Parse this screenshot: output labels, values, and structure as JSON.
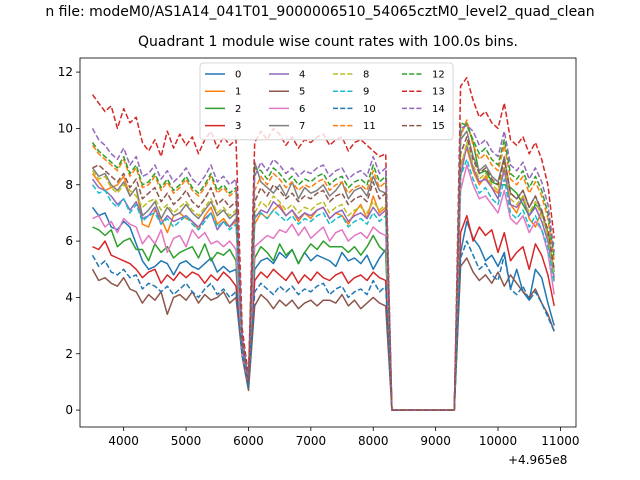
{
  "suptitle": "n file: modeM0/AS1A14_041T01_9000006510_54065cztM0_level2_quad_clean",
  "title": "Quadrant 1 module wise count rates with 100.0s bins.",
  "x_offset_label": "+4.965e8",
  "chart_data": {
    "type": "line",
    "title": "Quadrant 1 module wise count rates with 100.0s bins.",
    "xlim": [
      3300,
      11250
    ],
    "ylim": [
      -0.6,
      12.5
    ],
    "xticks": [
      4000,
      5000,
      6000,
      7000,
      8000,
      9000,
      10000,
      11000
    ],
    "yticks": [
      0,
      2,
      4,
      6,
      8,
      10,
      12
    ],
    "x_offset": "+4.965e8",
    "legend": {
      "position": "top-center",
      "columns": 4
    },
    "x": [
      3500,
      3600,
      3700,
      3800,
      3900,
      4000,
      4100,
      4200,
      4300,
      4400,
      4500,
      4600,
      4700,
      4800,
      4900,
      5000,
      5100,
      5200,
      5300,
      5400,
      5500,
      5600,
      5700,
      5800,
      5900,
      6000,
      6100,
      6200,
      6300,
      6400,
      6500,
      6600,
      6700,
      6800,
      6900,
      7000,
      7100,
      7200,
      7300,
      7400,
      7500,
      7600,
      7700,
      7800,
      7900,
      8000,
      8100,
      8200,
      8300,
      9300,
      9400,
      9500,
      9600,
      9700,
      9800,
      9900,
      10000,
      10100,
      10200,
      10300,
      10400,
      10500,
      10600,
      10700,
      10800,
      10900
    ],
    "series": [
      {
        "name": "0",
        "color": "#1f77b4",
        "dash": "solid",
        "values": [
          7.2,
          6.9,
          7.0,
          6.5,
          6.4,
          6.7,
          6.5,
          5.9,
          5.3,
          5.0,
          5.1,
          5.3,
          5.2,
          4.8,
          5.2,
          5.3,
          5.1,
          5.0,
          5.2,
          5.4,
          4.9,
          5.1,
          4.9,
          5.0,
          2.2,
          0.9,
          5.0,
          5.3,
          5.4,
          5.2,
          5.6,
          5.4,
          5.7,
          5.2,
          5.6,
          5.3,
          5.5,
          5.4,
          5.3,
          5.1,
          5.6,
          5.3,
          5.4,
          5.2,
          5.5,
          5.0,
          5.4,
          5.7,
          0,
          0,
          5.6,
          6.7,
          6.1,
          5.8,
          5.3,
          5.5,
          5.1,
          5.6,
          4.3,
          5.0,
          4.2,
          3.9,
          5.0,
          4.7,
          3.8,
          3.0
        ]
      },
      {
        "name": "1",
        "color": "#ff7f0e",
        "dash": "solid",
        "values": [
          8.4,
          8.1,
          7.8,
          7.9,
          8.0,
          8.3,
          7.6,
          7.9,
          6.6,
          6.5,
          7.1,
          6.8,
          6.3,
          6.9,
          7.0,
          6.8,
          6.7,
          6.4,
          6.9,
          7.2,
          6.6,
          6.8,
          6.5,
          6.7,
          2.4,
          1.0,
          6.6,
          7.0,
          6.8,
          7.1,
          7.3,
          6.9,
          7.1,
          6.7,
          7.0,
          6.8,
          7.1,
          7.2,
          6.8,
          7.0,
          6.9,
          6.6,
          7.0,
          7.3,
          6.8,
          7.6,
          7.0,
          7.2,
          0,
          0,
          8.7,
          9.3,
          8.5,
          8.0,
          8.3,
          7.9,
          7.7,
          8.5,
          7.3,
          7.0,
          7.6,
          6.8,
          6.5,
          7.1,
          6.2,
          4.6
        ]
      },
      {
        "name": "2",
        "color": "#2ca02c",
        "dash": "solid",
        "values": [
          6.5,
          6.4,
          6.2,
          6.4,
          5.8,
          6.0,
          6.1,
          5.7,
          5.7,
          5.3,
          5.9,
          5.6,
          5.8,
          5.4,
          5.6,
          5.7,
          5.8,
          5.4,
          5.9,
          5.3,
          5.6,
          5.5,
          5.7,
          5.3,
          2.1,
          0.8,
          5.4,
          5.8,
          5.6,
          5.3,
          5.9,
          5.5,
          5.7,
          5.2,
          5.6,
          5.9,
          5.7,
          6.0,
          5.8,
          5.8,
          5.8,
          5.6,
          5.8,
          5.5,
          5.8,
          6.2,
          5.8,
          5.6,
          0,
          0,
          9.8,
          10.2,
          9.5,
          8.4,
          8.5,
          8.1,
          8.0,
          8.0,
          7.9,
          7.7,
          7.3,
          6.9,
          7.3,
          7.1,
          6.2,
          5.9
        ]
      },
      {
        "name": "3",
        "color": "#d62728",
        "dash": "solid",
        "values": [
          5.8,
          5.7,
          6.0,
          5.5,
          5.4,
          5.3,
          5.2,
          5.0,
          4.7,
          4.9,
          5.0,
          4.5,
          4.8,
          4.6,
          4.9,
          4.7,
          4.9,
          4.8,
          4.5,
          4.8,
          4.6,
          4.9,
          4.7,
          4.4,
          2.0,
          0.9,
          4.6,
          4.9,
          4.7,
          5.0,
          4.8,
          4.6,
          4.9,
          4.5,
          4.8,
          4.6,
          4.9,
          4.7,
          4.6,
          4.8,
          4.9,
          4.5,
          4.7,
          4.8,
          4.6,
          4.9,
          4.7,
          4.6,
          0,
          0,
          6.3,
          6.9,
          6.0,
          6.5,
          6.2,
          6.4,
          5.6,
          6.3,
          5.3,
          5.6,
          5.8,
          5.0,
          5.9,
          5.5,
          4.8,
          3.7
        ]
      },
      {
        "name": "4",
        "color": "#9467bd",
        "dash": "solid",
        "values": [
          8.2,
          7.9,
          7.8,
          7.6,
          7.3,
          7.5,
          7.1,
          7.4,
          6.8,
          6.9,
          7.2,
          6.6,
          6.9,
          6.7,
          6.8,
          6.9,
          6.7,
          6.5,
          6.8,
          7.0,
          6.4,
          6.7,
          6.5,
          6.8,
          2.2,
          1.0,
          6.8,
          7.1,
          7.0,
          7.4,
          7.2,
          6.9,
          7.1,
          6.8,
          7.0,
          6.9,
          7.1,
          7.2,
          6.8,
          7.0,
          7.1,
          6.7,
          6.9,
          7.0,
          6.8,
          7.2,
          6.9,
          7.1,
          0,
          0,
          8.3,
          9.4,
          8.6,
          8.1,
          8.2,
          7.9,
          7.5,
          8.6,
          7.3,
          7.2,
          7.5,
          6.9,
          7.2,
          6.7,
          6.0,
          4.7
        ]
      },
      {
        "name": "5",
        "color": "#8c564b",
        "dash": "solid",
        "values": [
          5.0,
          4.6,
          4.7,
          4.5,
          4.4,
          4.7,
          4.3,
          4.2,
          3.8,
          4.1,
          3.9,
          4.2,
          3.4,
          4.0,
          4.1,
          3.9,
          4.2,
          3.8,
          4.1,
          3.9,
          4.0,
          4.2,
          3.8,
          4.0,
          1.9,
          0.7,
          3.7,
          4.1,
          3.9,
          3.6,
          3.9,
          3.7,
          3.9,
          3.6,
          3.8,
          3.9,
          3.7,
          3.9,
          3.9,
          3.8,
          4.1,
          3.7,
          3.9,
          3.6,
          3.8,
          4.0,
          3.8,
          3.7,
          0,
          0,
          5.1,
          5.4,
          4.9,
          4.6,
          4.8,
          4.5,
          4.9,
          4.4,
          4.8,
          4.5,
          4.2,
          4.0,
          4.3,
          3.8,
          3.4,
          2.8
        ]
      },
      {
        "name": "6",
        "color": "#e377c2",
        "dash": "solid",
        "values": [
          6.8,
          6.9,
          6.5,
          6.7,
          6.3,
          6.8,
          6.6,
          6.5,
          5.9,
          6.2,
          5.9,
          6.4,
          5.6,
          6.1,
          6.2,
          5.8,
          6.4,
          6.1,
          6.3,
          5.9,
          6.0,
          5.8,
          6.0,
          5.7,
          2.0,
          0.9,
          5.8,
          6.0,
          6.2,
          6.1,
          6.4,
          6.3,
          6.6,
          6.2,
          6.5,
          6.1,
          6.3,
          6.5,
          6.0,
          6.3,
          6.4,
          6.0,
          6.2,
          6.3,
          6.1,
          6.5,
          6.3,
          6.2,
          0,
          0,
          7.8,
          8.7,
          8.0,
          7.5,
          7.6,
          7.3,
          7.0,
          7.8,
          6.8,
          6.6,
          6.9,
          6.3,
          6.7,
          6.4,
          5.6,
          4.1
        ]
      },
      {
        "name": "7",
        "color": "#7f7f7f",
        "dash": "solid",
        "values": [
          8.6,
          8.3,
          8.4,
          8.0,
          7.8,
          8.1,
          7.6,
          7.9,
          6.9,
          7.1,
          7.4,
          6.8,
          7.2,
          6.9,
          7.0,
          7.3,
          7.0,
          6.8,
          7.1,
          7.4,
          6.9,
          7.1,
          6.8,
          7.0,
          2.3,
          1.0,
          8.8,
          8.1,
          7.9,
          7.7,
          8.0,
          7.6,
          8.1,
          7.5,
          7.9,
          7.7,
          7.8,
          8.0,
          7.6,
          7.8,
          8.1,
          7.5,
          7.8,
          7.9,
          7.6,
          8.3,
          7.8,
          7.7,
          0,
          0,
          9.6,
          9.9,
          9.0,
          8.5,
          8.7,
          8.3,
          8.1,
          9.0,
          7.7,
          7.5,
          7.8,
          7.2,
          7.6,
          7.0,
          6.3,
          4.9
        ]
      },
      {
        "name": "8",
        "color": "#bcbd22",
        "dash": "dashed",
        "values": [
          8.5,
          8.2,
          8.3,
          7.9,
          7.7,
          8.0,
          7.8,
          7.6,
          7.2,
          7.4,
          7.5,
          7.1,
          7.3,
          7.0,
          7.2,
          7.4,
          7.1,
          6.9,
          7.2,
          7.5,
          7.0,
          7.2,
          6.9,
          7.1,
          2.4,
          1.1,
          7.0,
          7.4,
          7.2,
          7.6,
          7.4,
          7.1,
          7.3,
          7.0,
          7.2,
          7.1,
          7.3,
          7.4,
          7.0,
          7.2,
          7.3,
          6.9,
          7.1,
          7.2,
          7.0,
          7.4,
          7.1,
          7.3,
          0,
          0,
          8.6,
          9.5,
          8.7,
          8.2,
          8.4,
          8.0,
          7.8,
          8.8,
          7.5,
          7.3,
          7.6,
          7.0,
          7.4,
          6.9,
          6.2,
          4.8
        ]
      },
      {
        "name": "9",
        "color": "#17becf",
        "dash": "dashed",
        "values": [
          8.0,
          7.7,
          7.8,
          7.4,
          7.2,
          7.5,
          7.0,
          7.3,
          6.7,
          6.9,
          7.0,
          6.6,
          6.8,
          6.5,
          6.7,
          6.9,
          6.6,
          6.4,
          6.7,
          7.0,
          6.5,
          6.7,
          6.4,
          6.6,
          2.2,
          1.0,
          6.9,
          7.0,
          6.8,
          7.1,
          6.9,
          6.7,
          6.9,
          6.6,
          6.8,
          6.7,
          6.9,
          7.0,
          6.6,
          6.8,
          6.9,
          6.5,
          6.7,
          6.8,
          6.6,
          7.0,
          6.7,
          6.9,
          0,
          0,
          8.3,
          8.9,
          8.2,
          7.7,
          7.9,
          7.5,
          7.3,
          8.2,
          7.0,
          6.8,
          7.1,
          6.5,
          6.9,
          6.4,
          5.8,
          4.5
        ]
      },
      {
        "name": "10",
        "color": "#1f77b4",
        "dash": "dashed",
        "values": [
          5.5,
          5.1,
          5.3,
          4.9,
          4.8,
          5.0,
          4.7,
          4.8,
          4.3,
          4.5,
          4.4,
          4.2,
          4.4,
          4.1,
          4.3,
          4.5,
          4.2,
          4.0,
          4.3,
          4.5,
          4.1,
          4.3,
          4.0,
          4.2,
          2.0,
          0.8,
          4.2,
          4.5,
          4.3,
          4.1,
          4.4,
          4.2,
          4.4,
          4.1,
          4.3,
          4.2,
          4.4,
          4.5,
          4.1,
          4.3,
          4.4,
          4.0,
          4.2,
          4.3,
          4.1,
          4.6,
          4.2,
          4.4,
          0,
          0,
          5.4,
          6.0,
          5.5,
          5.0,
          5.2,
          4.8,
          4.6,
          5.5,
          4.3,
          4.1,
          4.4,
          3.9,
          4.2,
          3.8,
          3.3,
          2.8
        ]
      },
      {
        "name": "11",
        "color": "#ff7f0e",
        "dash": "dashed",
        "values": [
          9.4,
          9.1,
          8.9,
          8.7,
          8.5,
          8.9,
          8.3,
          8.6,
          7.9,
          8.0,
          8.3,
          7.8,
          8.1,
          7.7,
          7.9,
          8.2,
          7.8,
          7.6,
          7.9,
          8.3,
          7.7,
          7.9,
          7.6,
          7.8,
          2.5,
          1.1,
          7.8,
          8.3,
          8.0,
          8.4,
          8.2,
          7.9,
          8.1,
          7.8,
          8.0,
          7.9,
          8.1,
          8.2,
          7.8,
          8.0,
          8.1,
          7.7,
          7.9,
          8.0,
          7.8,
          8.5,
          7.9,
          8.1,
          0,
          0,
          9.7,
          10.3,
          9.4,
          8.9,
          9.1,
          8.7,
          8.5,
          9.4,
          8.2,
          8.0,
          8.3,
          7.7,
          8.1,
          7.6,
          6.8,
          5.3
        ]
      },
      {
        "name": "12",
        "color": "#2ca02c",
        "dash": "dashed",
        "values": [
          9.5,
          9.2,
          9.0,
          8.8,
          8.6,
          9.0,
          8.4,
          8.7,
          8.0,
          8.1,
          8.4,
          7.9,
          8.2,
          7.8,
          8.0,
          8.3,
          7.9,
          7.7,
          8.0,
          8.4,
          7.8,
          8.0,
          7.7,
          7.9,
          2.5,
          1.1,
          8.6,
          8.5,
          8.2,
          8.6,
          8.4,
          8.1,
          8.3,
          8.0,
          8.2,
          8.1,
          8.3,
          8.4,
          8.0,
          8.2,
          8.3,
          7.9,
          8.1,
          8.2,
          8.0,
          8.7,
          8.1,
          8.3,
          0,
          0,
          10.2,
          10.1,
          9.6,
          9.1,
          9.3,
          8.9,
          8.7,
          9.6,
          8.4,
          8.2,
          8.5,
          7.9,
          8.3,
          7.8,
          7.0,
          5.4
        ]
      },
      {
        "name": "13",
        "color": "#d62728",
        "dash": "dashed",
        "values": [
          11.2,
          10.9,
          10.6,
          10.8,
          10.0,
          10.7,
          10.2,
          10.4,
          9.5,
          9.2,
          9.6,
          9.0,
          9.9,
          9.3,
          9.8,
          9.4,
          9.7,
          9.1,
          9.6,
          9.9,
          9.3,
          9.7,
          9.4,
          9.6,
          2.9,
          1.2,
          9.5,
          9.9,
          9.6,
          10.0,
          9.8,
          9.4,
          9.7,
          9.3,
          9.6,
          9.5,
          9.7,
          9.8,
          9.4,
          9.6,
          9.7,
          9.2,
          9.5,
          9.6,
          9.4,
          9.2,
          9.0,
          9.1,
          0,
          0,
          11.5,
          11.8,
          11.0,
          10.4,
          10.6,
          10.2,
          10.0,
          10.9,
          9.6,
          9.4,
          9.7,
          9.1,
          9.5,
          8.9,
          8.0,
          6.1
        ]
      },
      {
        "name": "14",
        "color": "#9467bd",
        "dash": "dashed",
        "values": [
          10.0,
          9.6,
          9.4,
          9.1,
          8.9,
          9.3,
          8.7,
          9.0,
          8.3,
          8.4,
          8.7,
          8.2,
          8.5,
          8.1,
          8.3,
          8.6,
          8.2,
          8.0,
          8.3,
          8.7,
          8.1,
          8.3,
          8.0,
          8.2,
          2.6,
          1.1,
          8.3,
          8.8,
          8.5,
          8.9,
          8.7,
          8.4,
          8.6,
          8.3,
          8.5,
          8.4,
          8.6,
          8.7,
          8.3,
          8.5,
          8.6,
          8.2,
          8.4,
          8.5,
          8.3,
          9.0,
          8.4,
          8.6,
          0,
          0,
          10.0,
          10.1,
          9.9,
          9.4,
          9.6,
          9.2,
          9.0,
          9.9,
          8.7,
          8.5,
          8.8,
          8.2,
          8.6,
          8.1,
          7.3,
          5.6
        ]
      },
      {
        "name": "15",
        "color": "#8c564b",
        "dash": "dashed",
        "values": [
          8.6,
          8.7,
          8.5,
          8.3,
          8.1,
          8.4,
          7.9,
          8.2,
          7.5,
          7.7,
          7.9,
          7.4,
          7.7,
          7.3,
          7.5,
          7.8,
          7.4,
          7.2,
          7.5,
          7.9,
          7.3,
          7.5,
          7.2,
          7.4,
          2.4,
          1.0,
          7.4,
          7.9,
          7.6,
          8.0,
          7.8,
          7.5,
          7.7,
          7.4,
          7.6,
          7.5,
          7.7,
          7.8,
          7.4,
          7.6,
          7.7,
          7.3,
          7.5,
          7.6,
          7.4,
          8.1,
          7.5,
          7.7,
          0,
          0,
          9.1,
          9.7,
          8.9,
          8.4,
          8.6,
          8.2,
          8.0,
          8.9,
          7.7,
          7.5,
          7.8,
          7.2,
          7.6,
          7.1,
          6.4,
          5.0
        ]
      }
    ]
  }
}
